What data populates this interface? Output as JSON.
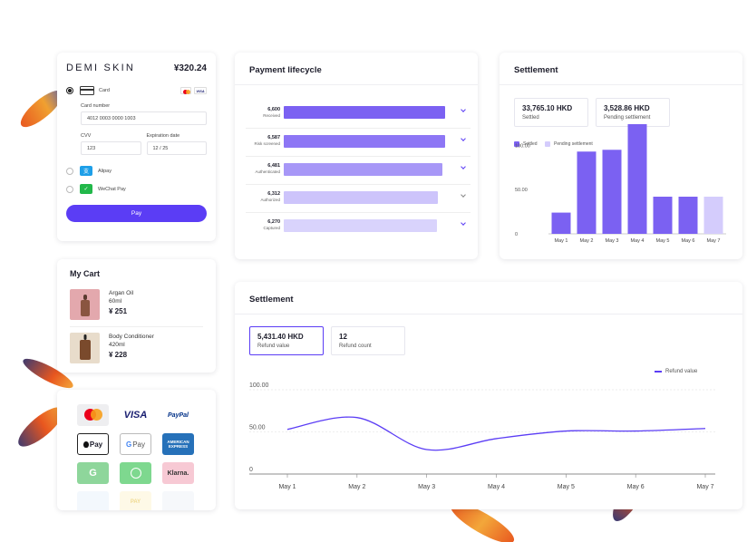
{
  "checkout": {
    "brand": "DEMI SKIN",
    "price": "¥320.24",
    "card_label": "Card",
    "card_number_label": "Card number",
    "card_number_value": "4012 0003 0000 1003",
    "cvv_label": "CVV",
    "cvv_value": "123",
    "expiry_label": "Expiration date",
    "expiry_value": "12 / 25",
    "alipay_label": "Alipay",
    "wechat_label": "WeChat Pay",
    "pay_label": "Pay",
    "visa_mini": "VISA"
  },
  "cart": {
    "title": "My Cart",
    "items": [
      {
        "name": "Argan Oil",
        "size": "60ml",
        "price": "¥ 251"
      },
      {
        "name": "Body Conditioner",
        "size": "420ml",
        "price": "¥ 228"
      }
    ]
  },
  "methods": {
    "visa": "VISA",
    "paypal": "PayPal",
    "applepay": "Pay",
    "gpay": "Pay",
    "amex": "AMERICAN EXPRESS",
    "klarna": "Klarna.",
    "wepay": "PAY"
  },
  "lifecycle": {
    "title": "Payment lifecycle",
    "max": 6600,
    "rows": [
      {
        "value": "6,600",
        "name": "Received",
        "amount": 6600,
        "color": "#7b61f2"
      },
      {
        "value": "6,587",
        "name": "Risk screened",
        "amount": 6587,
        "color": "#8d76f5"
      },
      {
        "value": "6,481",
        "name": "Authenticated",
        "amount": 6481,
        "color": "#a797f7"
      },
      {
        "value": "6,312",
        "name": "Authorized",
        "amount": 6312,
        "color": "#cdc4fb"
      },
      {
        "value": "6,270",
        "name": "Captured",
        "amount": 6270,
        "color": "#d9d3fc"
      }
    ]
  },
  "settlement_top": {
    "title": "Settlement",
    "settled_value": "33,765.10 HKD",
    "settled_label": "Settled",
    "pending_value": "3,528.86 HKD",
    "pending_label": "Pending settlement",
    "settled_color": "#7b61f2",
    "pending_color": "#d4ccfc"
  },
  "settlement_bottom": {
    "title": "Settlement",
    "refund_value": "5,431.40 HKD",
    "refund_label": "Refund value",
    "count_value": "12",
    "count_label": "Refund count",
    "line_color": "#5b3df5"
  },
  "chart_data": [
    {
      "type": "bar",
      "categories": [
        "May 1",
        "May 2",
        "May 3",
        "May 4",
        "May 5",
        "May 6",
        "May 7"
      ],
      "series": [
        {
          "name": "Settled",
          "values": [
            24,
            93,
            95,
            124,
            42,
            42,
            0
          ]
        },
        {
          "name": "Pending settlement",
          "values": [
            0,
            0,
            0,
            0,
            0,
            0,
            42
          ]
        }
      ],
      "ylim": [
        0,
        125
      ],
      "yticks": [
        0,
        50.0,
        100.0
      ],
      "ytick_labels": [
        "0",
        "50.00",
        "100.00"
      ],
      "legend": "top-left",
      "grid": false
    },
    {
      "type": "line",
      "x": [
        "May 1",
        "May 2",
        "May 3",
        "May 4",
        "May 5",
        "May 6",
        "May 7"
      ],
      "series": [
        {
          "name": "Refund value",
          "values": [
            53,
            67,
            29,
            42,
            51,
            51,
            54
          ]
        }
      ],
      "ylim": [
        0,
        100
      ],
      "yticks": [
        0,
        50.0,
        100.0
      ],
      "ytick_labels": [
        "0",
        "50.00",
        "100.00"
      ],
      "legend": "top-right",
      "grid": true
    }
  ]
}
